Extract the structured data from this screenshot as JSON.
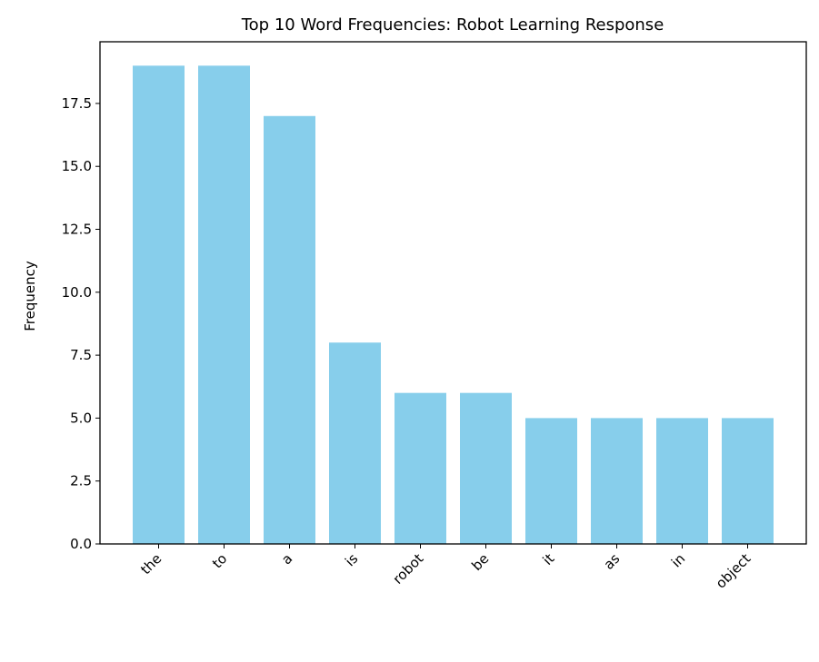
{
  "chart_data": {
    "type": "bar",
    "title": "Top 10 Word Frequencies: Robot Learning Response",
    "xlabel": "",
    "ylabel": "Frequency",
    "categories": [
      "the",
      "to",
      "a",
      "is",
      "robot",
      "be",
      "it",
      "as",
      "in",
      "object"
    ],
    "values": [
      19,
      19,
      17,
      8,
      6,
      6,
      5,
      5,
      5,
      5
    ],
    "ylim": [
      0,
      19.95
    ],
    "yticks": [
      0.0,
      2.5,
      5.0,
      7.5,
      10.0,
      12.5,
      15.0,
      17.5
    ],
    "ytick_labels": [
      "0.0",
      "2.5",
      "5.0",
      "7.5",
      "10.0",
      "12.5",
      "15.0",
      "17.5"
    ],
    "bar_color": "#87ceeb",
    "grid": false
  }
}
